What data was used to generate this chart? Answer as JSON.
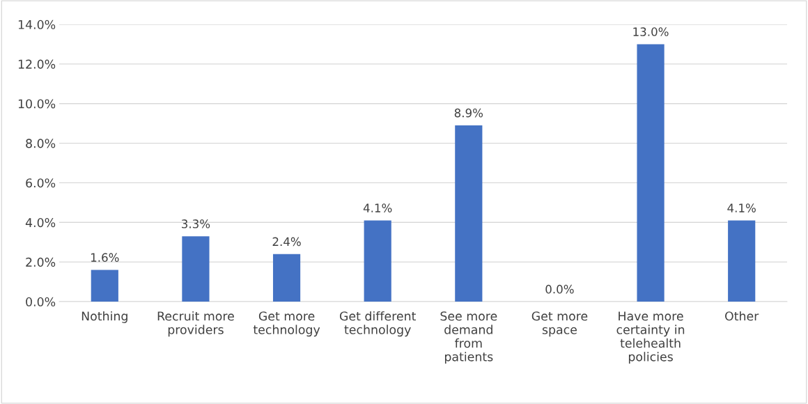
{
  "chart_data": {
    "type": "bar",
    "categories": [
      "Nothing",
      "Recruit more\nproviders",
      "Get more\ntechnology",
      "Get different\ntechnology",
      "See more\ndemand\nfrom\npatients",
      "Get more\nspace",
      "Have more\ncertainty in\ntelehealth\npolicies",
      "Other"
    ],
    "values": [
      1.6,
      3.3,
      2.4,
      4.1,
      8.9,
      0.0,
      13.0,
      4.1
    ],
    "value_labels": [
      "1.6%",
      "3.3%",
      "2.4%",
      "4.1%",
      "8.9%",
      "0.0%",
      "13.0%",
      "4.1%"
    ],
    "color": "#4472c4",
    "ylim": [
      0,
      14
    ],
    "yticks": [
      {
        "value": 0,
        "label": "0.0%"
      },
      {
        "value": 2,
        "label": "2.0%"
      },
      {
        "value": 4,
        "label": "4.0%"
      },
      {
        "value": 6,
        "label": "6.0%"
      },
      {
        "value": 8,
        "label": "8.0%"
      },
      {
        "value": 10,
        "label": "10.0%"
      },
      {
        "value": 12,
        "label": "12.0%"
      },
      {
        "value": 14,
        "label": "14.0%"
      }
    ],
    "grid": "y",
    "legend": false
  }
}
